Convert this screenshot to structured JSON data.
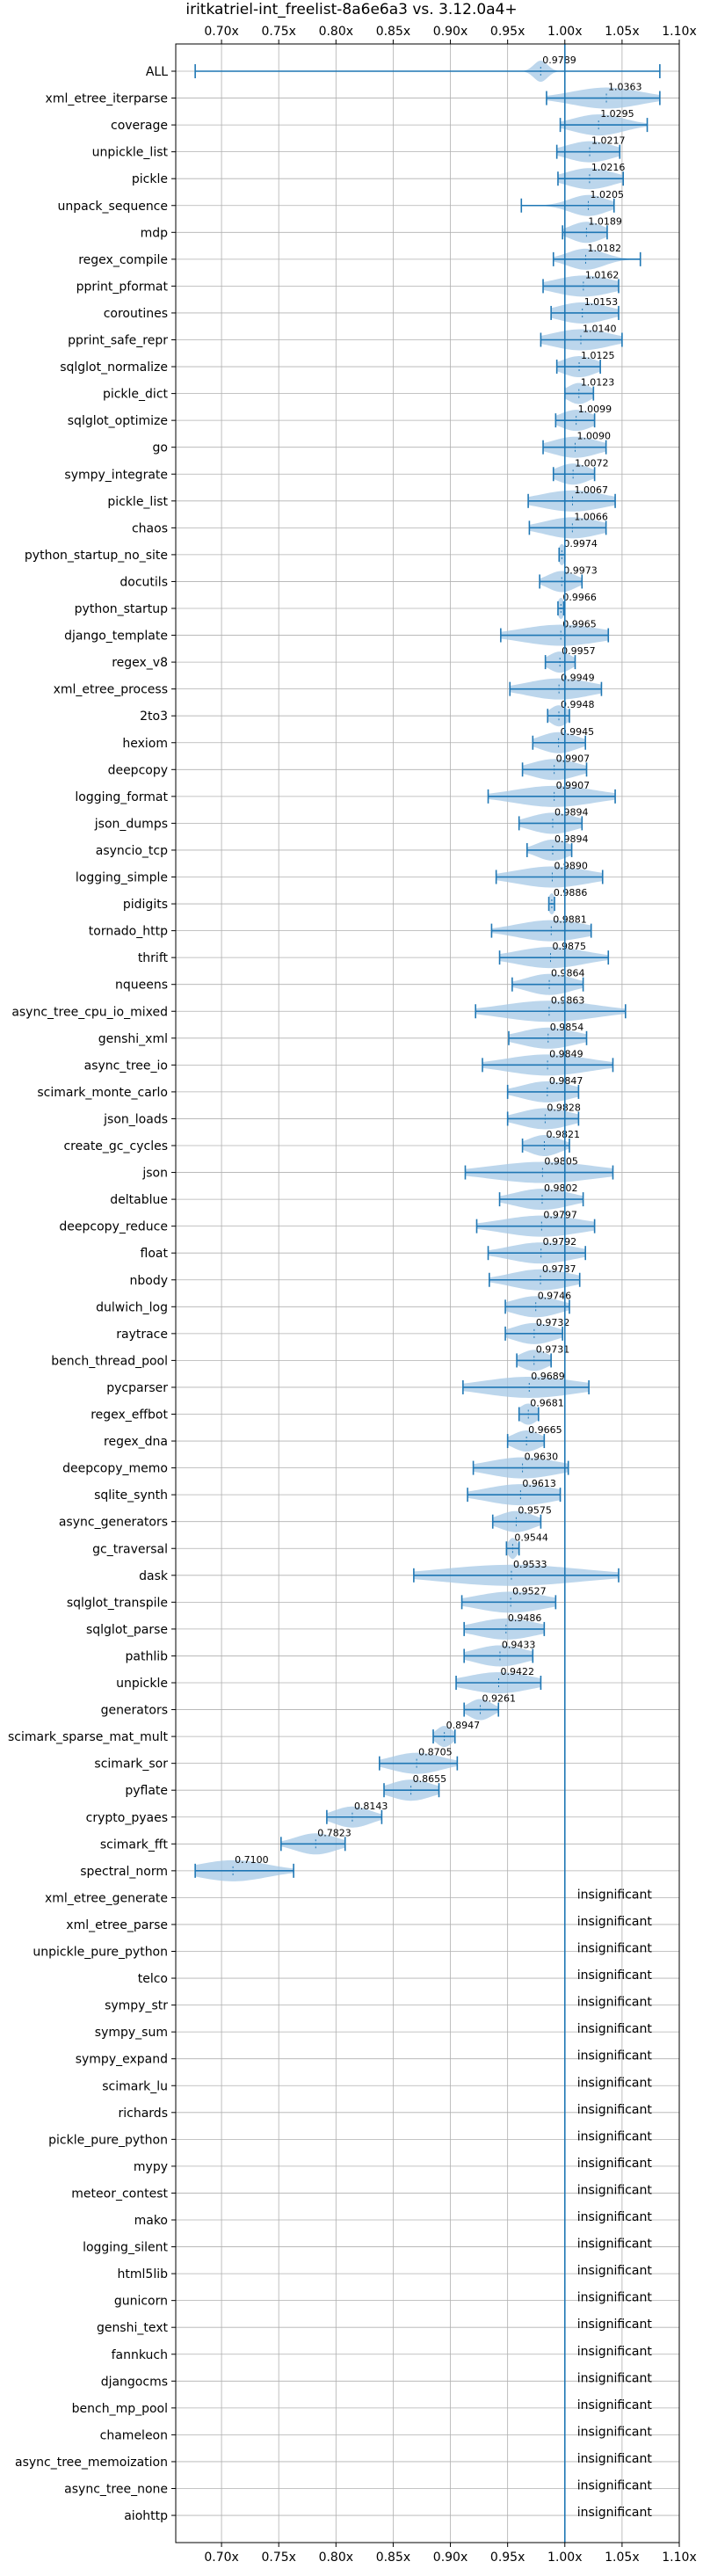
{
  "chart_data": {
    "type": "violin",
    "title": "iritkatriel-int_freelist-8a6e6a3 vs. 3.12.0a4+",
    "xlim": [
      0.66,
      1.1
    ],
    "x_ticks": [
      0.7,
      0.75,
      0.8,
      0.85,
      0.9,
      0.95,
      1.0,
      1.05,
      1.1
    ],
    "x_tick_labels": [
      "0.70x",
      "0.75x",
      "0.80x",
      "0.85x",
      "0.90x",
      "0.95x",
      "1.00x",
      "1.05x",
      "1.10x"
    ],
    "grid": true,
    "reference_line": 1.0,
    "insignificant_label": "insignificant",
    "colors": {
      "violin": "#a6c8e6",
      "whisker": "#1f77b4",
      "grid": "#b0b0b0",
      "text": "#000000"
    },
    "benchmarks": [
      {
        "name": "ALL",
        "mean": 0.9789,
        "label": "0.9789",
        "min": 0.677,
        "max": 1.083,
        "spread": 0.006,
        "significant": true
      },
      {
        "name": "xml_etree_iterparse",
        "mean": 1.0363,
        "label": "1.0363",
        "min": 0.984,
        "max": 1.083,
        "spread": 0.03,
        "significant": true
      },
      {
        "name": "coverage",
        "mean": 1.0295,
        "label": "1.0295",
        "min": 0.996,
        "max": 1.072,
        "spread": 0.022,
        "significant": true
      },
      {
        "name": "unpickle_list",
        "mean": 1.0217,
        "label": "1.0217",
        "min": 0.993,
        "max": 1.048,
        "spread": 0.02,
        "significant": true
      },
      {
        "name": "pickle",
        "mean": 1.0216,
        "label": "1.0216",
        "min": 0.994,
        "max": 1.051,
        "spread": 0.02,
        "significant": true
      },
      {
        "name": "unpack_sequence",
        "mean": 1.0205,
        "label": "1.0205",
        "min": 0.962,
        "max": 1.043,
        "spread": 0.016,
        "significant": true
      },
      {
        "name": "mdp",
        "mean": 1.0189,
        "label": "1.0189",
        "min": 0.998,
        "max": 1.037,
        "spread": 0.014,
        "significant": true
      },
      {
        "name": "regex_compile",
        "mean": 1.0182,
        "label": "1.0182",
        "min": 0.99,
        "max": 1.066,
        "spread": 0.016,
        "significant": true
      },
      {
        "name": "pprint_pformat",
        "mean": 1.0162,
        "label": "1.0162",
        "min": 0.981,
        "max": 1.047,
        "spread": 0.025,
        "significant": true
      },
      {
        "name": "coroutines",
        "mean": 1.0153,
        "label": "1.0153",
        "min": 0.988,
        "max": 1.047,
        "spread": 0.022,
        "significant": true
      },
      {
        "name": "pprint_safe_repr",
        "mean": 1.014,
        "label": "1.0140",
        "min": 0.979,
        "max": 1.05,
        "spread": 0.025,
        "significant": true
      },
      {
        "name": "sqlglot_normalize",
        "mean": 1.0125,
        "label": "1.0125",
        "min": 0.993,
        "max": 1.031,
        "spread": 0.015,
        "significant": true
      },
      {
        "name": "pickle_dict",
        "mean": 1.0123,
        "label": "1.0123",
        "min": 1.0,
        "max": 1.025,
        "spread": 0.01,
        "significant": true
      },
      {
        "name": "sqlglot_optimize",
        "mean": 1.0099,
        "label": "1.0099",
        "min": 0.992,
        "max": 1.026,
        "spread": 0.014,
        "significant": true
      },
      {
        "name": "go",
        "mean": 1.009,
        "label": "1.0090",
        "min": 0.981,
        "max": 1.036,
        "spread": 0.02,
        "significant": true
      },
      {
        "name": "sympy_integrate",
        "mean": 1.0072,
        "label": "1.0072",
        "min": 0.99,
        "max": 1.026,
        "spread": 0.014,
        "significant": true
      },
      {
        "name": "pickle_list",
        "mean": 1.0067,
        "label": "1.0067",
        "min": 0.968,
        "max": 1.044,
        "spread": 0.028,
        "significant": true
      },
      {
        "name": "chaos",
        "mean": 1.0066,
        "label": "1.0066",
        "min": 0.969,
        "max": 1.036,
        "spread": 0.024,
        "significant": true
      },
      {
        "name": "python_startup_no_site",
        "mean": 0.9974,
        "label": "0.9974",
        "min": 0.995,
        "max": 1.0,
        "spread": 0.003,
        "significant": true
      },
      {
        "name": "docutils",
        "mean": 0.9973,
        "label": "0.9973",
        "min": 0.978,
        "max": 1.015,
        "spread": 0.012,
        "significant": true
      },
      {
        "name": "python_startup",
        "mean": 0.9966,
        "label": "0.9966",
        "min": 0.994,
        "max": 0.999,
        "spread": 0.003,
        "significant": true
      },
      {
        "name": "django_template",
        "mean": 0.9965,
        "label": "0.9965",
        "min": 0.944,
        "max": 1.038,
        "spread": 0.035,
        "significant": true
      },
      {
        "name": "regex_v8",
        "mean": 0.9957,
        "label": "0.9957",
        "min": 0.983,
        "max": 1.009,
        "spread": 0.01,
        "significant": true
      },
      {
        "name": "xml_etree_process",
        "mean": 0.9949,
        "label": "0.9949",
        "min": 0.952,
        "max": 1.032,
        "spread": 0.028,
        "significant": true
      },
      {
        "name": "2to3",
        "mean": 0.9948,
        "label": "0.9948",
        "min": 0.985,
        "max": 1.004,
        "spread": 0.008,
        "significant": true
      },
      {
        "name": "hexiom",
        "mean": 0.9945,
        "label": "0.9945",
        "min": 0.972,
        "max": 1.018,
        "spread": 0.016,
        "significant": true
      },
      {
        "name": "deepcopy",
        "mean": 0.9907,
        "label": "0.9907",
        "min": 0.963,
        "max": 1.019,
        "spread": 0.02,
        "significant": true
      },
      {
        "name": "logging_format",
        "mean": 0.9907,
        "label": "0.9907",
        "min": 0.933,
        "max": 1.044,
        "spread": 0.035,
        "significant": true
      },
      {
        "name": "json_dumps",
        "mean": 0.9894,
        "label": "0.9894",
        "min": 0.96,
        "max": 1.015,
        "spread": 0.02,
        "significant": true
      },
      {
        "name": "asyncio_tcp",
        "mean": 0.9894,
        "label": "0.9894",
        "min": 0.967,
        "max": 1.006,
        "spread": 0.014,
        "significant": true
      },
      {
        "name": "logging_simple",
        "mean": 0.989,
        "label": "0.9890",
        "min": 0.94,
        "max": 1.033,
        "spread": 0.032,
        "significant": true
      },
      {
        "name": "pidigits",
        "mean": 0.9886,
        "label": "0.9886",
        "min": 0.986,
        "max": 0.991,
        "spread": 0.003,
        "significant": true
      },
      {
        "name": "tornado_http",
        "mean": 0.9881,
        "label": "0.9881",
        "min": 0.936,
        "max": 1.023,
        "spread": 0.03,
        "significant": true
      },
      {
        "name": "thrift",
        "mean": 0.9875,
        "label": "0.9875",
        "min": 0.943,
        "max": 1.038,
        "spread": 0.03,
        "significant": true
      },
      {
        "name": "nqueens",
        "mean": 0.9864,
        "label": "0.9864",
        "min": 0.954,
        "max": 1.016,
        "spread": 0.02,
        "significant": true
      },
      {
        "name": "async_tree_cpu_io_mixed",
        "mean": 0.9863,
        "label": "0.9863",
        "min": 0.922,
        "max": 1.053,
        "spread": 0.04,
        "significant": true
      },
      {
        "name": "genshi_xml",
        "mean": 0.9854,
        "label": "0.9854",
        "min": 0.951,
        "max": 1.019,
        "spread": 0.024,
        "significant": true
      },
      {
        "name": "async_tree_io",
        "mean": 0.9849,
        "label": "0.9849",
        "min": 0.928,
        "max": 1.042,
        "spread": 0.036,
        "significant": true
      },
      {
        "name": "scimark_monte_carlo",
        "mean": 0.9847,
        "label": "0.9847",
        "min": 0.95,
        "max": 1.012,
        "spread": 0.022,
        "significant": true
      },
      {
        "name": "json_loads",
        "mean": 0.9828,
        "label": "0.9828",
        "min": 0.95,
        "max": 1.012,
        "spread": 0.022,
        "significant": true
      },
      {
        "name": "create_gc_cycles",
        "mean": 0.9821,
        "label": "0.9821",
        "min": 0.963,
        "max": 1.004,
        "spread": 0.014,
        "significant": true
      },
      {
        "name": "json",
        "mean": 0.9805,
        "label": "0.9805",
        "min": 0.913,
        "max": 1.042,
        "spread": 0.045,
        "significant": true
      },
      {
        "name": "deltablue",
        "mean": 0.9802,
        "label": "0.9802",
        "min": 0.943,
        "max": 1.016,
        "spread": 0.024,
        "significant": true
      },
      {
        "name": "deepcopy_reduce",
        "mean": 0.9797,
        "label": "0.9797",
        "min": 0.923,
        "max": 1.026,
        "spread": 0.035,
        "significant": true
      },
      {
        "name": "float",
        "mean": 0.9792,
        "label": "0.9792",
        "min": 0.933,
        "max": 1.018,
        "spread": 0.028,
        "significant": true
      },
      {
        "name": "nbody",
        "mean": 0.9787,
        "label": "0.9787",
        "min": 0.934,
        "max": 1.013,
        "spread": 0.026,
        "significant": true
      },
      {
        "name": "dulwich_log",
        "mean": 0.9746,
        "label": "0.9746",
        "min": 0.948,
        "max": 1.004,
        "spread": 0.02,
        "significant": true
      },
      {
        "name": "raytrace",
        "mean": 0.9732,
        "label": "0.9732",
        "min": 0.948,
        "max": 0.998,
        "spread": 0.018,
        "significant": true
      },
      {
        "name": "bench_thread_pool",
        "mean": 0.9731,
        "label": "0.9731",
        "min": 0.958,
        "max": 0.988,
        "spread": 0.012,
        "significant": true
      },
      {
        "name": "pycparser",
        "mean": 0.9689,
        "label": "0.9689",
        "min": 0.911,
        "max": 1.021,
        "spread": 0.04,
        "significant": true
      },
      {
        "name": "regex_effbot",
        "mean": 0.9681,
        "label": "0.9681",
        "min": 0.96,
        "max": 0.977,
        "spread": 0.008,
        "significant": true
      },
      {
        "name": "regex_dna",
        "mean": 0.9665,
        "label": "0.9665",
        "min": 0.95,
        "max": 0.982,
        "spread": 0.012,
        "significant": true
      },
      {
        "name": "deepcopy_memo",
        "mean": 0.963,
        "label": "0.9630",
        "min": 0.92,
        "max": 1.003,
        "spread": 0.03,
        "significant": true
      },
      {
        "name": "sqlite_synth",
        "mean": 0.9613,
        "label": "0.9613",
        "min": 0.915,
        "max": 0.996,
        "spread": 0.03,
        "significant": true
      },
      {
        "name": "async_generators",
        "mean": 0.9575,
        "label": "0.9575",
        "min": 0.937,
        "max": 0.979,
        "spread": 0.015,
        "significant": true
      },
      {
        "name": "gc_traversal",
        "mean": 0.9544,
        "label": "0.9544",
        "min": 0.949,
        "max": 0.96,
        "spread": 0.004,
        "significant": true
      },
      {
        "name": "dask",
        "mean": 0.9533,
        "label": "0.9533",
        "min": 0.868,
        "max": 1.047,
        "spread": 0.06,
        "significant": true
      },
      {
        "name": "sqlglot_transpile",
        "mean": 0.9527,
        "label": "0.9527",
        "min": 0.91,
        "max": 0.992,
        "spread": 0.03,
        "significant": true
      },
      {
        "name": "sqlglot_parse",
        "mean": 0.9486,
        "label": "0.9486",
        "min": 0.912,
        "max": 0.982,
        "spread": 0.026,
        "significant": true
      },
      {
        "name": "pathlib",
        "mean": 0.9433,
        "label": "0.9433",
        "min": 0.912,
        "max": 0.972,
        "spread": 0.022,
        "significant": true
      },
      {
        "name": "unpickle",
        "mean": 0.9422,
        "label": "0.9422",
        "min": 0.905,
        "max": 0.979,
        "spread": 0.028,
        "significant": true
      },
      {
        "name": "generators",
        "mean": 0.9261,
        "label": "0.9261",
        "min": 0.912,
        "max": 0.942,
        "spread": 0.01,
        "significant": true
      },
      {
        "name": "scimark_sparse_mat_mult",
        "mean": 0.8947,
        "label": "0.8947",
        "min": 0.885,
        "max": 0.904,
        "spread": 0.007,
        "significant": true
      },
      {
        "name": "scimark_sor",
        "mean": 0.8705,
        "label": "0.8705",
        "min": 0.838,
        "max": 0.906,
        "spread": 0.022,
        "significant": true
      },
      {
        "name": "pyflate",
        "mean": 0.8655,
        "label": "0.8655",
        "min": 0.842,
        "max": 0.89,
        "spread": 0.018,
        "significant": true
      },
      {
        "name": "crypto_pyaes",
        "mean": 0.8143,
        "label": "0.8143",
        "min": 0.792,
        "max": 0.84,
        "spread": 0.016,
        "significant": true
      },
      {
        "name": "scimark_fft",
        "mean": 0.7823,
        "label": "0.7823",
        "min": 0.752,
        "max": 0.808,
        "spread": 0.018,
        "significant": true
      },
      {
        "name": "spectral_norm",
        "mean": 0.71,
        "label": "0.7100",
        "min": 0.677,
        "max": 0.763,
        "spread": 0.03,
        "significant": true
      },
      {
        "name": "xml_etree_generate",
        "significant": false
      },
      {
        "name": "xml_etree_parse",
        "significant": false
      },
      {
        "name": "unpickle_pure_python",
        "significant": false
      },
      {
        "name": "telco",
        "significant": false
      },
      {
        "name": "sympy_str",
        "significant": false
      },
      {
        "name": "sympy_sum",
        "significant": false
      },
      {
        "name": "sympy_expand",
        "significant": false
      },
      {
        "name": "scimark_lu",
        "significant": false
      },
      {
        "name": "richards",
        "significant": false
      },
      {
        "name": "pickle_pure_python",
        "significant": false
      },
      {
        "name": "mypy",
        "significant": false
      },
      {
        "name": "meteor_contest",
        "significant": false
      },
      {
        "name": "mako",
        "significant": false
      },
      {
        "name": "logging_silent",
        "significant": false
      },
      {
        "name": "html5lib",
        "significant": false
      },
      {
        "name": "gunicorn",
        "significant": false
      },
      {
        "name": "genshi_text",
        "significant": false
      },
      {
        "name": "fannkuch",
        "significant": false
      },
      {
        "name": "djangocms",
        "significant": false
      },
      {
        "name": "bench_mp_pool",
        "significant": false
      },
      {
        "name": "chameleon",
        "significant": false
      },
      {
        "name": "async_tree_memoization",
        "significant": false
      },
      {
        "name": "async_tree_none",
        "significant": false
      },
      {
        "name": "aiohttp",
        "significant": false
      }
    ]
  }
}
